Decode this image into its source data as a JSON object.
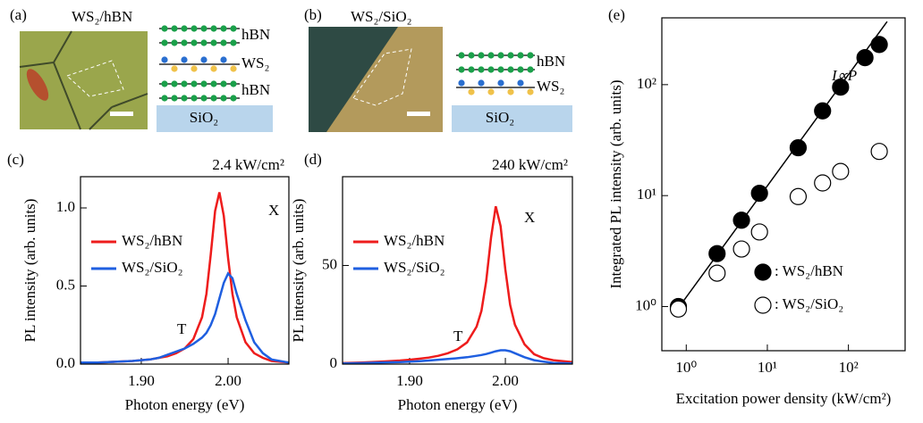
{
  "panel_a": {
    "label": "(a)",
    "caption": "WS₂/hBN",
    "layers": [
      "hBN",
      "WS₂",
      "hBN"
    ],
    "substrate": "SiO₂"
  },
  "panel_b": {
    "label": "(b)",
    "caption": "WS₂/SiO₂",
    "layers": [
      "hBN",
      "WS₂"
    ],
    "substrate": "SiO₂"
  },
  "chart_data": [
    {
      "type": "line",
      "label": "(c)",
      "power": "2.4 kW/cm²",
      "xlabel": "Photon energy (eV)",
      "ylabel": "PL intensity (arb. units)",
      "annotations": [
        "X",
        "T"
      ],
      "x": [
        1.83,
        1.85,
        1.87,
        1.89,
        1.9,
        1.91,
        1.92,
        1.93,
        1.94,
        1.95,
        1.96,
        1.97,
        1.975,
        1.98,
        1.985,
        1.99,
        1.995,
        2.0,
        2.005,
        2.01,
        2.02,
        2.03,
        2.04,
        2.05,
        2.07
      ],
      "series": [
        {
          "name": "WS₂/hBN",
          "color": "#ee1c1c",
          "values": [
            0.01,
            0.01,
            0.015,
            0.02,
            0.025,
            0.03,
            0.04,
            0.05,
            0.07,
            0.1,
            0.16,
            0.3,
            0.45,
            0.7,
            0.98,
            1.1,
            0.95,
            0.68,
            0.45,
            0.3,
            0.14,
            0.07,
            0.04,
            0.02,
            0.01
          ]
        },
        {
          "name": "WS₂/SiO₂",
          "color": "#1f5fe0",
          "values": [
            0.01,
            0.01,
            0.015,
            0.02,
            0.025,
            0.03,
            0.04,
            0.06,
            0.08,
            0.1,
            0.13,
            0.17,
            0.2,
            0.25,
            0.32,
            0.42,
            0.52,
            0.58,
            0.55,
            0.45,
            0.28,
            0.14,
            0.07,
            0.03,
            0.01
          ]
        }
      ],
      "xlim": [
        1.83,
        2.07
      ],
      "xticks": [
        {
          "value": 1.9,
          "label": "1.90"
        },
        {
          "value": 2.0,
          "label": "2.00"
        }
      ],
      "ylim": [
        0,
        1.2
      ],
      "yticks": [
        {
          "value": 0,
          "label": "0.0"
        },
        0.5,
        {
          "value": 1,
          "label": "1.0"
        }
      ]
    },
    {
      "type": "line",
      "label": "(d)",
      "power": "240 kW/cm²",
      "xlabel": "Photon energy (eV)",
      "ylabel": "PL intensity (arb. units)",
      "annotations": [
        "X",
        "T"
      ],
      "x": [
        1.83,
        1.85,
        1.87,
        1.89,
        1.9,
        1.91,
        1.92,
        1.93,
        1.94,
        1.95,
        1.96,
        1.97,
        1.975,
        1.98,
        1.985,
        1.99,
        1.995,
        2.0,
        2.005,
        2.01,
        2.02,
        2.03,
        2.04,
        2.05,
        2.07
      ],
      "series": [
        {
          "name": "WS₂/hBN",
          "color": "#ee1c1c",
          "values": [
            0.5,
            0.8,
            1.2,
            1.8,
            2.2,
            2.7,
            3.3,
            4.2,
            5.5,
            7.5,
            11,
            19,
            27,
            42,
            64,
            80,
            70,
            48,
            30,
            20,
            10,
            5,
            3,
            2,
            1
          ]
        },
        {
          "name": "WS₂/SiO₂",
          "color": "#1f5fe0",
          "values": [
            0.3,
            0.5,
            0.8,
            1,
            1.2,
            1.5,
            1.8,
            2.2,
            2.6,
            3,
            3.5,
            4.2,
            4.6,
            5.1,
            5.8,
            6.5,
            7,
            7,
            6.5,
            5.5,
            3.5,
            2,
            1.2,
            0.6,
            0.3
          ]
        }
      ],
      "xlim": [
        1.83,
        2.07
      ],
      "xticks": [
        {
          "value": 1.9,
          "label": "1.90"
        },
        {
          "value": 2.0,
          "label": "2.00"
        }
      ],
      "ylim": [
        0,
        95
      ],
      "yticks": [
        0,
        50
      ]
    },
    {
      "type": "scatter",
      "label": "(e)",
      "xlabel": "Excitation power density (kW/cm²)",
      "ylabel": "Integrated PL intensity (arb. units)",
      "annotations": [
        "I∝P"
      ],
      "log_x": true,
      "log_y": true,
      "series": [
        {
          "name": ": WS₂/hBN",
          "color": "#000000",
          "fill": "#000000",
          "x": [
            0.8,
            2.4,
            4.8,
            8,
            24,
            48,
            80,
            160,
            240
          ],
          "values": [
            1,
            3,
            6,
            10.5,
            27,
            58,
            95,
            175,
            230
          ]
        },
        {
          "name": ": WS₂/SiO₂",
          "color": "#000000",
          "fill": "#ffffff",
          "x": [
            0.8,
            2.4,
            4.8,
            8,
            24,
            48,
            80,
            240
          ],
          "values": [
            0.95,
            2,
            3.3,
            4.7,
            9.8,
            13,
            16.5,
            25
          ]
        }
      ],
      "fit": {
        "x": [
          0.7,
          300
        ],
        "values": [
          0.85,
          370
        ]
      },
      "xlim": [
        0.5,
        500
      ],
      "xticks": [
        {
          "value": 1,
          "label": "10⁰"
        },
        {
          "value": 10,
          "label": "10¹"
        },
        {
          "value": 100,
          "label": "10²"
        }
      ],
      "ylim": [
        0.4,
        400
      ],
      "yticks": [
        {
          "value": 1,
          "label": "10⁰"
        },
        {
          "value": 10,
          "label": "10¹"
        },
        {
          "value": 100,
          "label": "10²"
        }
      ]
    }
  ]
}
